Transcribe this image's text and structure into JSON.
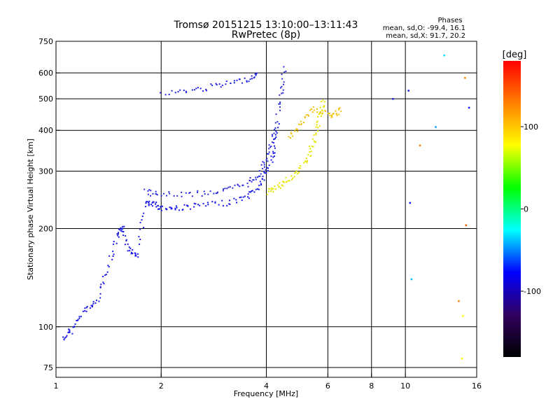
{
  "chart_data": {
    "type": "scatter",
    "title": "Tromsø 20151215 13:10:00–13:11:43",
    "subtitle": "RwPretec (8p)",
    "xlabel": "Frequency [MHz]",
    "ylabel": "Stationary phase Virtual Height [km]",
    "x_scale": "log",
    "y_scale": "log",
    "xlim": [
      1,
      16
    ],
    "ylim": [
      70,
      750
    ],
    "x_ticks": [
      1,
      2,
      4,
      6,
      8,
      10,
      16
    ],
    "y_ticks": [
      75,
      100,
      200,
      300,
      400,
      500,
      600,
      750
    ],
    "grid": true,
    "stats": {
      "heading": "Phases",
      "o_line": "mean, sd,O: -99.4, 16.1",
      "x_line": "mean, sd,X:  91.7, 20.2"
    },
    "colorbar": {
      "label": "[deg]",
      "range": [
        -180,
        180
      ],
      "ticks": [
        100,
        0,
        -100
      ],
      "colors": [
        "#000000",
        "#300060",
        "#0000ff",
        "#00ffff",
        "#00ff00",
        "#ffff00",
        "#ff8000",
        "#ff0000"
      ]
    },
    "traces": [
      {
        "mode": "O",
        "phase": -99,
        "color": "#1a1ae6",
        "points": [
          [
            1.05,
            92
          ],
          [
            1.1,
            98
          ],
          [
            1.2,
            112
          ],
          [
            1.3,
            120
          ],
          [
            1.4,
            150
          ],
          [
            1.5,
            190
          ],
          [
            1.55,
            205
          ],
          [
            1.6,
            175
          ],
          [
            1.7,
            165
          ],
          [
            1.8,
            240
          ],
          [
            1.9,
            238
          ],
          [
            2.0,
            232
          ],
          [
            2.2,
            232
          ],
          [
            2.5,
            236
          ],
          [
            3.0,
            240
          ],
          [
            3.5,
            250
          ],
          [
            3.8,
            270
          ],
          [
            4.0,
            300
          ],
          [
            4.2,
            350
          ],
          [
            4.3,
            420
          ]
        ]
      },
      {
        "mode": "O2",
        "phase": -95,
        "color": "#2a2ad8",
        "points": [
          [
            1.8,
            260
          ],
          [
            2.0,
            255
          ],
          [
            2.5,
            257
          ],
          [
            3.0,
            262
          ],
          [
            3.5,
            275
          ],
          [
            3.8,
            295
          ],
          [
            4.0,
            330
          ],
          [
            4.2,
            390
          ],
          [
            4.4,
            520
          ],
          [
            4.5,
            630
          ]
        ]
      },
      {
        "mode": "F-spread",
        "phase": -105,
        "color": "#2020e0",
        "points": [
          [
            2.0,
            520
          ],
          [
            2.5,
            535
          ],
          [
            3.0,
            555
          ],
          [
            3.5,
            575
          ],
          [
            3.8,
            600
          ]
        ]
      },
      {
        "mode": "X",
        "phase": 90,
        "color": "#e6e600",
        "points": [
          [
            4.0,
            260
          ],
          [
            4.3,
            270
          ],
          [
            4.6,
            285
          ],
          [
            5.0,
            305
          ],
          [
            5.3,
            340
          ],
          [
            5.5,
            390
          ],
          [
            5.7,
            450
          ],
          [
            5.8,
            500
          ]
        ]
      },
      {
        "mode": "X2",
        "phase": 120,
        "color": "#f0c000",
        "points": [
          [
            4.6,
            380
          ],
          [
            5.0,
            420
          ],
          [
            5.5,
            470
          ],
          [
            6.2,
            440
          ],
          [
            6.5,
            470
          ]
        ]
      }
    ],
    "sparse_points": [
      {
        "x": 9.2,
        "y": 500,
        "phase": -100,
        "color": "#2020e0"
      },
      {
        "x": 10.2,
        "y": 530,
        "phase": -110,
        "color": "#1a1ae6"
      },
      {
        "x": 10.3,
        "y": 240,
        "phase": -100,
        "color": "#1a1ae6"
      },
      {
        "x": 10.4,
        "y": 140,
        "phase": -30,
        "color": "#00c0ff"
      },
      {
        "x": 11.0,
        "y": 360,
        "phase": 140,
        "color": "#ff8000"
      },
      {
        "x": 12.2,
        "y": 410,
        "phase": -80,
        "color": "#00a0ff"
      },
      {
        "x": 12.9,
        "y": 680,
        "phase": -20,
        "color": "#00e0ff"
      },
      {
        "x": 14.2,
        "y": 120,
        "phase": 150,
        "color": "#ff8000"
      },
      {
        "x": 14.6,
        "y": 108,
        "phase": 100,
        "color": "#ffff00"
      },
      {
        "x": 14.8,
        "y": 580,
        "phase": 140,
        "color": "#ff8000"
      },
      {
        "x": 14.9,
        "y": 205,
        "phase": 150,
        "color": "#ff6000"
      },
      {
        "x": 15.2,
        "y": 470,
        "phase": -100,
        "color": "#1a1ae6"
      },
      {
        "x": 14.5,
        "y": 80,
        "phase": 100,
        "color": "#ffff00"
      }
    ]
  }
}
